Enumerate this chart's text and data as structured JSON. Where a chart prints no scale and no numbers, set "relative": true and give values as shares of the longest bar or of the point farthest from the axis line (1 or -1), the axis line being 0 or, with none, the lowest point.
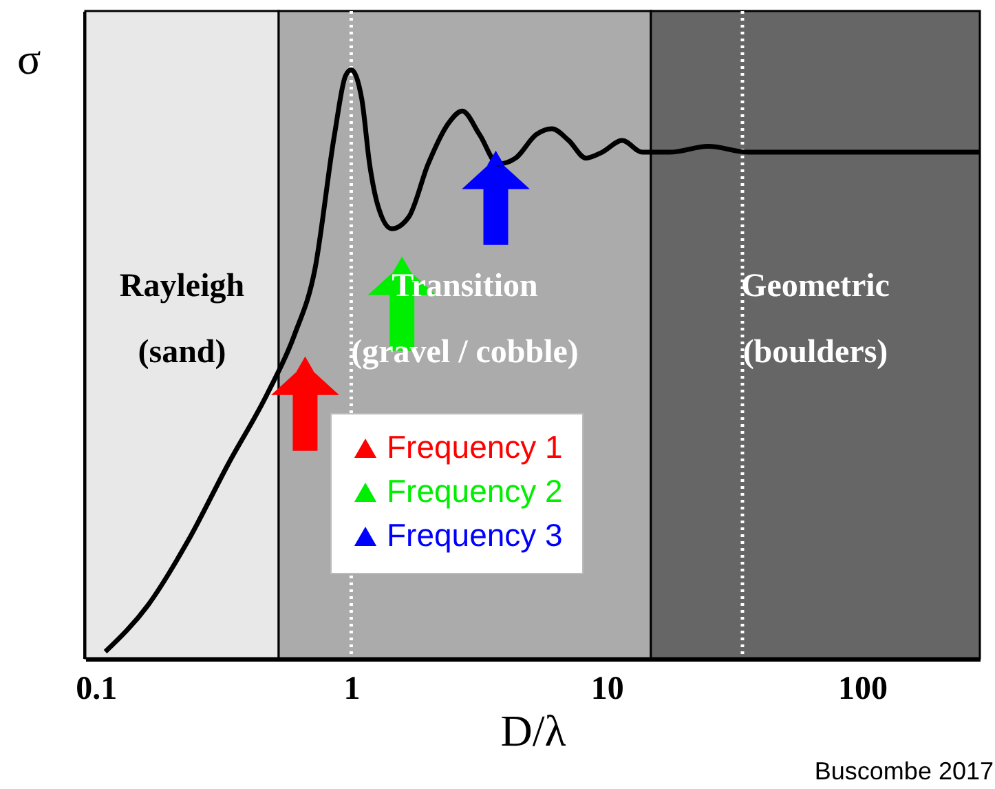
{
  "chart_data": {
    "type": "line",
    "xlabel": "D/λ",
    "ylabel": "σ",
    "relative": true,
    "log": "x",
    "xlim": [
      0.091,
      289
    ],
    "xticks": [
      0.1,
      1,
      10,
      100
    ],
    "legend": "bottom",
    "line_style": "solid",
    "series": [
      {
        "type": "line",
        "color": "#000000",
        "x": [
          0.109,
          0.16,
          0.23,
          0.33,
          0.47,
          0.6,
          0.72,
          0.86,
          0.95,
          1.0,
          1.1,
          1.18,
          1.27,
          1.44,
          1.68,
          2.0,
          2.41,
          2.72,
          3.18,
          3.76,
          4.4,
          5.3,
          6.1,
          7.1,
          8.3,
          9.6,
          11.5,
          13.8,
          17.6,
          25,
          36,
          289
        ],
        "values": [
          0.011,
          0.09,
          0.2,
          0.33,
          0.45,
          0.55,
          0.66,
          0.89,
          0.99,
          1.0,
          0.95,
          0.84,
          0.77,
          0.73,
          0.75,
          0.84,
          0.91,
          0.93,
          0.89,
          0.84,
          0.85,
          0.89,
          0.9,
          0.88,
          0.85,
          0.86,
          0.88,
          0.86,
          0.86,
          0.87,
          0.86,
          0.86
        ]
      },
      {
        "type": "scatter",
        "name": "Frequency 1",
        "color": "#ff0000",
        "marker": "triangle",
        "x": [
          0.66
        ],
        "values": [
          0.5
        ]
      },
      {
        "type": "scatter",
        "name": "Frequency 2",
        "color": "#00ee00",
        "marker": "triangle",
        "x": [
          1.58
        ],
        "values": [
          0.67
        ]
      },
      {
        "type": "scatter",
        "name": "Frequency 3",
        "color": "#0000ff",
        "marker": "triangle",
        "x": [
          3.68
        ],
        "values": [
          0.85
        ]
      }
    ],
    "bands": [
      {
        "axis": "x",
        "from": 0.091,
        "to": 0.52,
        "label": "Rayleigh\n(sand)",
        "color": "#e8e8e8"
      },
      {
        "axis": "x",
        "from": 0.52,
        "to": 14.9,
        "label": "Transition\n(gravel / cobble)",
        "color": "#ababab"
      },
      {
        "axis": "x",
        "from": 14.9,
        "to": 289,
        "label": "Geometric\n(boulders)",
        "color": "#666666"
      }
    ],
    "ref_lines": [
      {
        "axis": "x",
        "value": 1,
        "color": "#ffffff",
        "line_style": "dotted"
      },
      {
        "axis": "x",
        "value": 34,
        "color": "#ffffff",
        "line_style": "dotted"
      }
    ],
    "annotations": [
      "Buscombe 2017"
    ]
  }
}
